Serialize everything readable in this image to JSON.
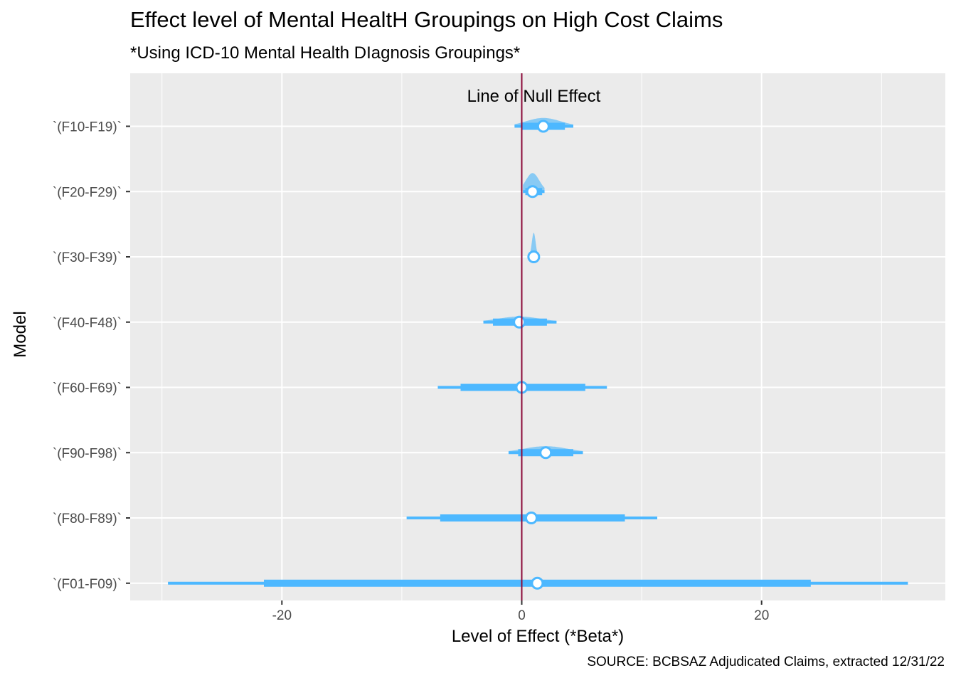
{
  "title": "Effect level of Mental HealtH Groupings on High Cost Claims",
  "subtitle": "*Using ICD-10 Mental Health DIagnosis Groupings*",
  "caption": "SOURCE: BCBSAZ Adjudicated Claims, extracted 12/31/22",
  "colors": {
    "panel": "#ebebeb",
    "grid": "#ffffff",
    "interval": "#4db8ff",
    "density": "#7dc6f5",
    "null_line": "#8b0a3a"
  },
  "chart_data": {
    "type": "interval",
    "xlabel": "Level of Effect (*Beta*)",
    "ylabel": "Model",
    "xlim": [
      -32.5,
      35
    ],
    "xticks": [
      -20,
      0,
      20
    ],
    "xtick_labels": [
      "-20",
      "0",
      "20"
    ],
    "grid": true,
    "reference_line": {
      "x": 0,
      "label": "Line of Null Effect"
    },
    "models": [
      {
        "name": "`(F10-F19)`",
        "estimate": 1.8,
        "inner": [
          0.0,
          3.6
        ],
        "outer": [
          -0.6,
          4.3
        ],
        "density_height": 0.45
      },
      {
        "name": "`(F20-F29)`",
        "estimate": 0.9,
        "inner": [
          0.3,
          1.7
        ],
        "outer": [
          0.1,
          1.9
        ],
        "density_height": 1.0
      },
      {
        "name": "`(F30-F39)`",
        "estimate": 1.0,
        "inner": [
          0.8,
          1.2
        ],
        "outer": [
          0.7,
          1.3
        ],
        "density_height": 1.3
      },
      {
        "name": "`(F40-F48)`",
        "estimate": -0.2,
        "inner": [
          -2.4,
          2.1
        ],
        "outer": [
          -3.2,
          2.9
        ],
        "density_height": 0.3
      },
      {
        "name": "`(F60-F69)`",
        "estimate": 0.0,
        "inner": [
          -5.1,
          5.3
        ],
        "outer": [
          -7.0,
          7.1
        ],
        "density_height": 0.1
      },
      {
        "name": "`(F90-F98)`",
        "estimate": 2.0,
        "inner": [
          -0.3,
          4.3
        ],
        "outer": [
          -1.1,
          5.1
        ],
        "density_height": 0.35
      },
      {
        "name": "`(F80-F89)`",
        "estimate": 0.8,
        "inner": [
          -6.8,
          8.6
        ],
        "outer": [
          -9.6,
          11.3
        ],
        "density_height": 0.05
      },
      {
        "name": "`(F01-F09)`",
        "estimate": 1.3,
        "inner": [
          -21.5,
          24.1
        ],
        "outer": [
          -29.5,
          32.2
        ],
        "density_height": 0.02
      }
    ]
  }
}
